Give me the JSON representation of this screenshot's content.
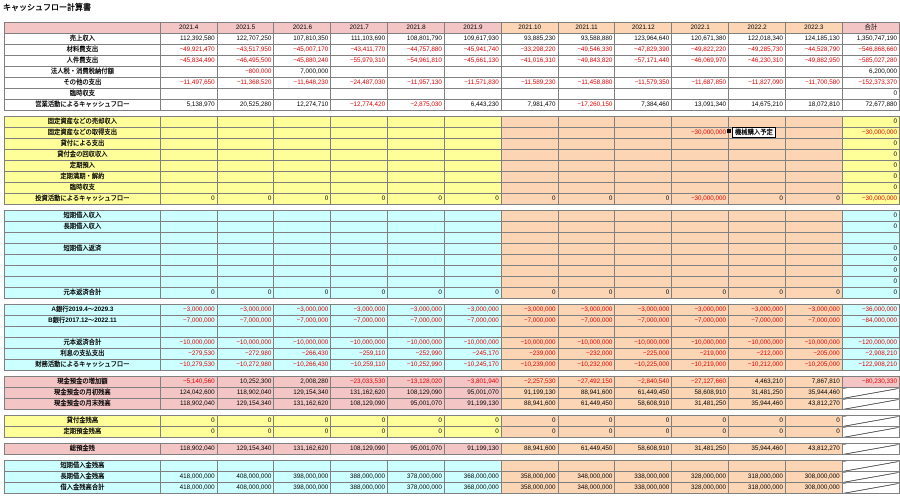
{
  "title": "キャッシュフロー計算書",
  "note": "機械購入予定",
  "columns": [
    "2021.4",
    "2021.5",
    "2021.6",
    "2021.7",
    "2021.8",
    "2021.9",
    "2021.10",
    "2021.11",
    "2021.12",
    "2022.1",
    "2022.2",
    "2022.3",
    "合計"
  ],
  "rows": [
    {
      "type": "header",
      "theme": "pink",
      "label": ""
    },
    {
      "type": "data",
      "theme": "white",
      "label": "売上収入",
      "values": [
        "112,392,580",
        "122,707,250",
        "107,810,350",
        "111,103,690",
        "108,801,790",
        "109,617,930",
        "93,885,230",
        "93,588,880",
        "123,964,640",
        "120,671,380",
        "122,018,340",
        "124,185,130",
        "1,350,747,190"
      ]
    },
    {
      "type": "data",
      "theme": "white",
      "label": "材料費支出",
      "values": [
        "−49,921,470",
        "−43,517,950",
        "−45,007,170",
        "−43,411,770",
        "−44,757,880",
        "−45,941,740",
        "−33,298,220",
        "−49,546,330",
        "−47,829,390",
        "−49,822,220",
        "−49,285,730",
        "−44,528,790",
        "−546,868,660"
      ]
    },
    {
      "type": "data",
      "theme": "white",
      "label": "人件費支出",
      "values": [
        "−45,834,490",
        "−46,495,500",
        "−45,880,240",
        "−55,979,310",
        "−54,961,810",
        "−45,661,130",
        "−41,016,310",
        "−49,843,820",
        "−57,171,440",
        "−46,069,970",
        "−46,230,310",
        "−49,882,950",
        "−585,027,280"
      ]
    },
    {
      "type": "data",
      "theme": "white",
      "label": "法人税・消費税納付額",
      "values": [
        "",
        "−800,000",
        "7,000,000",
        "",
        "",
        "",
        "",
        "",
        "",
        "",
        "",
        "",
        "6,200,000"
      ]
    },
    {
      "type": "data",
      "theme": "white",
      "label": "その他の支出",
      "values": [
        "−11,497,650",
        "−11,368,520",
        "−11,648,230",
        "−24,487,030",
        "−11,957,130",
        "−11,571,830",
        "−11,589,230",
        "−11,458,880",
        "−11,579,350",
        "−11,687,850",
        "−11,827,090",
        "−11,700,580",
        "−152,373,370"
      ]
    },
    {
      "type": "data",
      "theme": "white",
      "label": "臨時収支",
      "values": [
        "",
        "",
        "",
        "",
        "",
        "",
        "",
        "",
        "",
        "",
        "",
        "",
        "0"
      ]
    },
    {
      "type": "data",
      "theme": "white",
      "label": "営業活動によるキャッシュフロー",
      "values": [
        "5,138,970",
        "20,525,280",
        "12,274,710",
        "−12,774,420",
        "−2,875,030",
        "6,443,230",
        "7,981,470",
        "−17,260,150",
        "7,384,460",
        "13,091,340",
        "14,675,210",
        "18,072,810",
        "72,677,880"
      ]
    },
    {
      "type": "gap"
    },
    {
      "type": "data",
      "theme": "yellow",
      "label": "固定資産などの売却収入",
      "values": [
        "",
        "",
        "",
        "",
        "",
        "",
        "",
        "",
        "",
        "",
        "",
        "",
        "0"
      ]
    },
    {
      "type": "data",
      "theme": "yellow",
      "label": "固定資産などの取得支出",
      "values": [
        "",
        "",
        "",
        "",
        "",
        "",
        "",
        "",
        "",
        "−30,000,000",
        "",
        "",
        "−30,000,000"
      ]
    },
    {
      "type": "data",
      "theme": "yellow",
      "label": "貸付による支出",
      "values": [
        "",
        "",
        "",
        "",
        "",
        "",
        "",
        "",
        "",
        "",
        "",
        "",
        "0"
      ]
    },
    {
      "type": "data",
      "theme": "yellow",
      "label": "貸付金の回収収入",
      "values": [
        "",
        "",
        "",
        "",
        "",
        "",
        "",
        "",
        "",
        "",
        "",
        "",
        "0"
      ]
    },
    {
      "type": "data",
      "theme": "yellow",
      "label": "定期預入",
      "values": [
        "",
        "",
        "",
        "",
        "",
        "",
        "",
        "",
        "",
        "",
        "",
        "",
        "0"
      ]
    },
    {
      "type": "data",
      "theme": "yellow",
      "label": "定期満期・解約",
      "values": [
        "",
        "",
        "",
        "",
        "",
        "",
        "",
        "",
        "",
        "",
        "",
        "",
        "0"
      ]
    },
    {
      "type": "data",
      "theme": "yellow",
      "label": "臨時収支",
      "values": [
        "",
        "",
        "",
        "",
        "",
        "",
        "",
        "",
        "",
        "",
        "",
        "",
        "0"
      ]
    },
    {
      "type": "data",
      "theme": "yellow",
      "label": "投資活動によるキャッシュフロー",
      "values": [
        "0",
        "0",
        "0",
        "0",
        "0",
        "0",
        "0",
        "0",
        "0",
        "−30,000,000",
        "0",
        "0",
        "−30,000,000"
      ]
    },
    {
      "type": "gap"
    },
    {
      "type": "data",
      "theme": "cyan",
      "label": "短期借入収入",
      "values": [
        "",
        "",
        "",
        "",
        "",
        "",
        "",
        "",
        "",
        "",
        "",
        "",
        "0"
      ]
    },
    {
      "type": "data",
      "theme": "cyan",
      "label": "長期借入収入",
      "values": [
        "",
        "",
        "",
        "",
        "",
        "",
        "",
        "",
        "",
        "",
        "",
        "",
        "0"
      ]
    },
    {
      "type": "data",
      "theme": "cyan",
      "label": "",
      "values": [
        "",
        "",
        "",
        "",
        "",
        "",
        "",
        "",
        "",
        "",
        "",
        "",
        ""
      ]
    },
    {
      "type": "data",
      "theme": "cyan",
      "label": "短期借入返済",
      "values": [
        "",
        "",
        "",
        "",
        "",
        "",
        "",
        "",
        "",
        "",
        "",
        "",
        "0"
      ]
    },
    {
      "type": "data",
      "theme": "cyan",
      "label": "",
      "values": [
        "",
        "",
        "",
        "",
        "",
        "",
        "",
        "",
        "",
        "",
        "",
        "",
        "0"
      ]
    },
    {
      "type": "data",
      "theme": "cyan",
      "label": "",
      "values": [
        "",
        "",
        "",
        "",
        "",
        "",
        "",
        "",
        "",
        "",
        "",
        "",
        "0"
      ]
    },
    {
      "type": "data",
      "theme": "cyan",
      "label": "",
      "values": [
        "",
        "",
        "",
        "",
        "",
        "",
        "",
        "",
        "",
        "",
        "",
        "",
        "0"
      ]
    },
    {
      "type": "data",
      "theme": "cyan",
      "label": "元本返済合計",
      "values": [
        "0",
        "0",
        "0",
        "0",
        "0",
        "0",
        "0",
        "0",
        "0",
        "0",
        "0",
        "0",
        "0"
      ]
    },
    {
      "type": "gap"
    },
    {
      "type": "data",
      "theme": "cyan",
      "label": "A銀行2019.4〜2029.3",
      "values": [
        "−3,000,000",
        "−3,000,000",
        "−3,000,000",
        "−3,000,000",
        "−3,000,000",
        "−3,000,000",
        "−3,000,000",
        "−3,000,000",
        "−3,000,000",
        "−3,000,000",
        "−3,000,000",
        "−3,000,000",
        "−36,000,000"
      ]
    },
    {
      "type": "data",
      "theme": "cyan",
      "label": "B銀行2017.12〜2022.11",
      "values": [
        "−7,000,000",
        "−7,000,000",
        "−7,000,000",
        "−7,000,000",
        "−7,000,000",
        "−7,000,000",
        "−7,000,000",
        "−7,000,000",
        "−7,000,000",
        "−7,000,000",
        "−7,000,000",
        "−7,000,000",
        "−84,000,000"
      ]
    },
    {
      "type": "data",
      "theme": "cyan",
      "label": "",
      "values": [
        "",
        "",
        "",
        "",
        "",
        "",
        "",
        "",
        "",
        "",
        "",
        "",
        ""
      ]
    },
    {
      "type": "data",
      "theme": "cyan",
      "label": "元本返済合計",
      "values": [
        "−10,000,000",
        "−10,000,000",
        "−10,000,000",
        "−10,000,000",
        "−10,000,000",
        "−10,000,000",
        "−10,000,000",
        "−10,000,000",
        "−10,000,000",
        "−10,000,000",
        "−10,000,000",
        "−10,000,000",
        "−120,000,000"
      ]
    },
    {
      "type": "data",
      "theme": "cyan",
      "label": "利息の支払支出",
      "values": [
        "−279,530",
        "−272,980",
        "−266,430",
        "−259,110",
        "−252,990",
        "−245,170",
        "−239,000",
        "−232,000",
        "−225,000",
        "−219,000",
        "−212,000",
        "−205,000",
        "−2,908,210"
      ]
    },
    {
      "type": "data",
      "theme": "cyan",
      "label": "財務活動によるキャッシュフロー",
      "values": [
        "−10,279,530",
        "−10,272,980",
        "−10,266,430",
        "−10,259,110",
        "−10,252,990",
        "−10,245,170",
        "−10,239,000",
        "−10,232,000",
        "−10,225,000",
        "−10,219,000",
        "−10,212,000",
        "−10,205,000",
        "−122,908,210"
      ]
    },
    {
      "type": "gap"
    },
    {
      "type": "data",
      "theme": "pink",
      "label": "現金預金の増加額",
      "values": [
        "−5,140,560",
        "10,252,300",
        "2,008,280",
        "−23,033,530",
        "−13,128,020",
        "−3,801,940",
        "−2,257,530",
        "−27,492,150",
        "−2,840,540",
        "−27,127,660",
        "4,463,210",
        "7,867,810",
        "−80,230,330"
      ]
    },
    {
      "type": "data",
      "theme": "pink",
      "label": "現金預金の月初残高",
      "values": [
        "124,042,600",
        "118,902,040",
        "129,154,340",
        "131,162,620",
        "108,129,090",
        "95,001,070",
        "91,199,130",
        "88,941,600",
        "61,449,450",
        "58,608,910",
        "31,481,250",
        "35,944,460",
        ""
      ],
      "slash": true
    },
    {
      "type": "data",
      "theme": "pink",
      "label": "現金預金の月末残高",
      "values": [
        "118,902,040",
        "129,154,340",
        "131,162,620",
        "108,129,090",
        "95,001,070",
        "91,199,130",
        "88,941,600",
        "61,449,450",
        "58,608,910",
        "31,481,250",
        "35,944,460",
        "43,812,270",
        ""
      ],
      "slash": true
    },
    {
      "type": "gap"
    },
    {
      "type": "data",
      "theme": "yellow",
      "label": "貸付金残高",
      "values": [
        "0",
        "0",
        "0",
        "0",
        "0",
        "0",
        "0",
        "0",
        "0",
        "0",
        "0",
        "0",
        ""
      ],
      "slash": true
    },
    {
      "type": "data",
      "theme": "yellow",
      "label": "定期預金残高",
      "values": [
        "0",
        "0",
        "0",
        "0",
        "0",
        "0",
        "0",
        "0",
        "0",
        "0",
        "0",
        "0",
        ""
      ],
      "slash": true
    },
    {
      "type": "gap"
    },
    {
      "type": "data",
      "theme": "pink",
      "label": "総預金残",
      "values": [
        "118,902,040",
        "129,154,340",
        "131,162,620",
        "108,129,090",
        "95,001,070",
        "91,199,130",
        "88,941,600",
        "61,449,450",
        "58,608,910",
        "31,481,250",
        "35,944,460",
        "43,812,270",
        ""
      ],
      "slash": true
    },
    {
      "type": "gap"
    },
    {
      "type": "data",
      "theme": "cyan",
      "label": "短期借入金残高",
      "values": [
        "",
        "",
        "",
        "",
        "",
        "",
        "",
        "",
        "",
        "",
        "",
        "",
        ""
      ],
      "slash": true
    },
    {
      "type": "data",
      "theme": "cyan",
      "label": "長期借入金残高",
      "values": [
        "418,000,000",
        "408,000,000",
        "398,000,000",
        "388,000,000",
        "378,000,000",
        "368,000,000",
        "358,000,000",
        "348,000,000",
        "338,000,000",
        "328,000,000",
        "318,000,000",
        "308,000,000",
        ""
      ],
      "slash": true
    },
    {
      "type": "data",
      "theme": "cyan",
      "label": "借入金残高合計",
      "values": [
        "418,000,000",
        "408,000,000",
        "398,000,000",
        "388,000,000",
        "378,000,000",
        "368,000,000",
        "358,000,000",
        "348,000,000",
        "338,000,000",
        "328,000,000",
        "318,000,000",
        "308,000,000",
        ""
      ],
      "slash": true
    }
  ]
}
